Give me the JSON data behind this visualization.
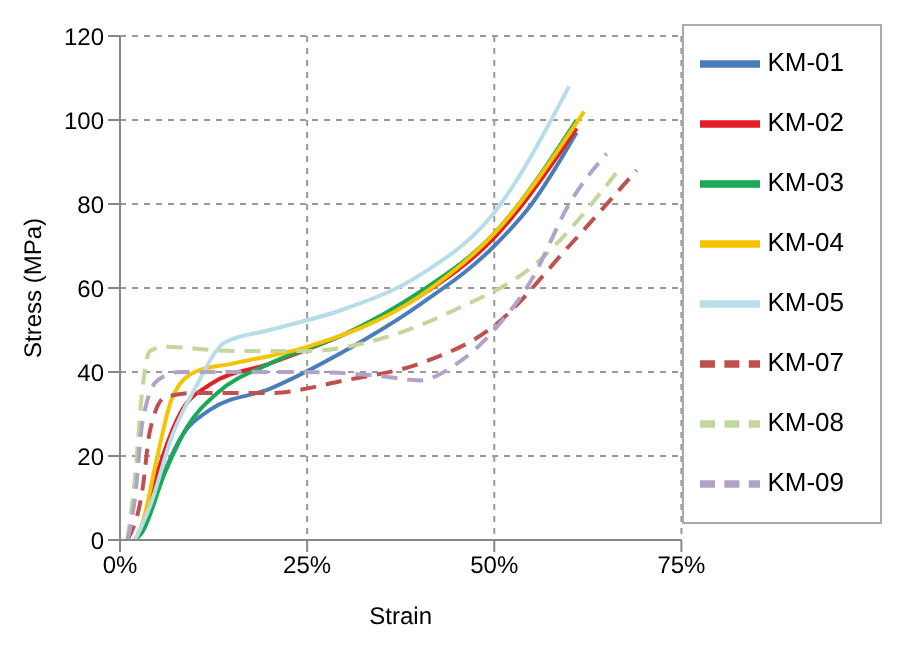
{
  "chart_data": {
    "type": "line",
    "xlabel": "Strain",
    "ylabel": "Stress  (MPa)",
    "xlim": [
      0,
      75
    ],
    "ylim": [
      0,
      120
    ],
    "xticks": [
      {
        "value": 0,
        "label": "0%"
      },
      {
        "value": 25,
        "label": "25%"
      },
      {
        "value": 50,
        "label": "50%"
      },
      {
        "value": 75,
        "label": "75%"
      }
    ],
    "yticks": [
      0,
      20,
      40,
      60,
      80,
      100,
      120
    ],
    "grid": true,
    "legend": "right",
    "marker": "none",
    "series": [
      {
        "name": "KM-01",
        "color": "#4a7ebb",
        "line_style": "solid",
        "x": [
          2,
          3,
          5,
          8,
          12,
          20,
          30,
          40,
          50,
          55,
          61
        ],
        "values": [
          0,
          2,
          12,
          24,
          31,
          36,
          45,
          56,
          70,
          80,
          97
        ]
      },
      {
        "name": "KM-02",
        "color": "#e31e24",
        "line_style": "solid",
        "x": [
          2,
          3,
          5,
          8,
          12,
          20,
          30,
          40,
          50,
          61
        ],
        "values": [
          0,
          3,
          16,
          30,
          37,
          42,
          49,
          58,
          72,
          98
        ]
      },
      {
        "name": "KM-03",
        "color": "#1aaa55",
        "line_style": "solid",
        "x": [
          2,
          3,
          6,
          9,
          13,
          20,
          30,
          40,
          50,
          61
        ],
        "values": [
          0,
          2,
          16,
          27,
          35,
          42,
          49,
          59,
          73,
          100
        ]
      },
      {
        "name": "KM-04",
        "color": "#f5c400",
        "line_style": "solid",
        "x": [
          2,
          3,
          5,
          7,
          10,
          15,
          25,
          40,
          50,
          62
        ],
        "values": [
          0,
          4,
          20,
          34,
          40,
          42,
          46,
          58,
          73,
          102
        ]
      },
      {
        "name": "KM-05",
        "color": "#b7dde8",
        "line_style": "solid",
        "x": [
          2,
          4,
          7,
          10,
          14,
          20,
          30,
          40,
          50,
          60
        ],
        "values": [
          0,
          8,
          25,
          36,
          47,
          50,
          55,
          63,
          78,
          108
        ]
      },
      {
        "name": "KM-07",
        "color": "#c0504d",
        "line_style": "dashed",
        "x": [
          1,
          3,
          4,
          6,
          10,
          20,
          30,
          40,
          50,
          60,
          69
        ],
        "values": [
          0,
          12,
          26,
          34,
          35,
          35,
          38,
          42,
          51,
          70,
          88
        ]
      },
      {
        "name": "KM-08",
        "color": "#c3d69b",
        "line_style": "dashed",
        "x": [
          1,
          2,
          3,
          4,
          6,
          15,
          25,
          35,
          45,
          55,
          67
        ],
        "values": [
          0,
          15,
          36,
          45,
          46,
          45,
          45,
          48,
          55,
          65,
          89
        ]
      },
      {
        "name": "KM-09",
        "color": "#b3a2c7",
        "line_style": "dashed",
        "x": [
          1,
          2,
          3,
          5,
          8,
          15,
          25,
          35,
          40,
          45,
          50,
          55,
          60,
          65
        ],
        "values": [
          0,
          10,
          28,
          38,
          40,
          40,
          40,
          39,
          38,
          42,
          50,
          62,
          80,
          92
        ]
      }
    ]
  }
}
